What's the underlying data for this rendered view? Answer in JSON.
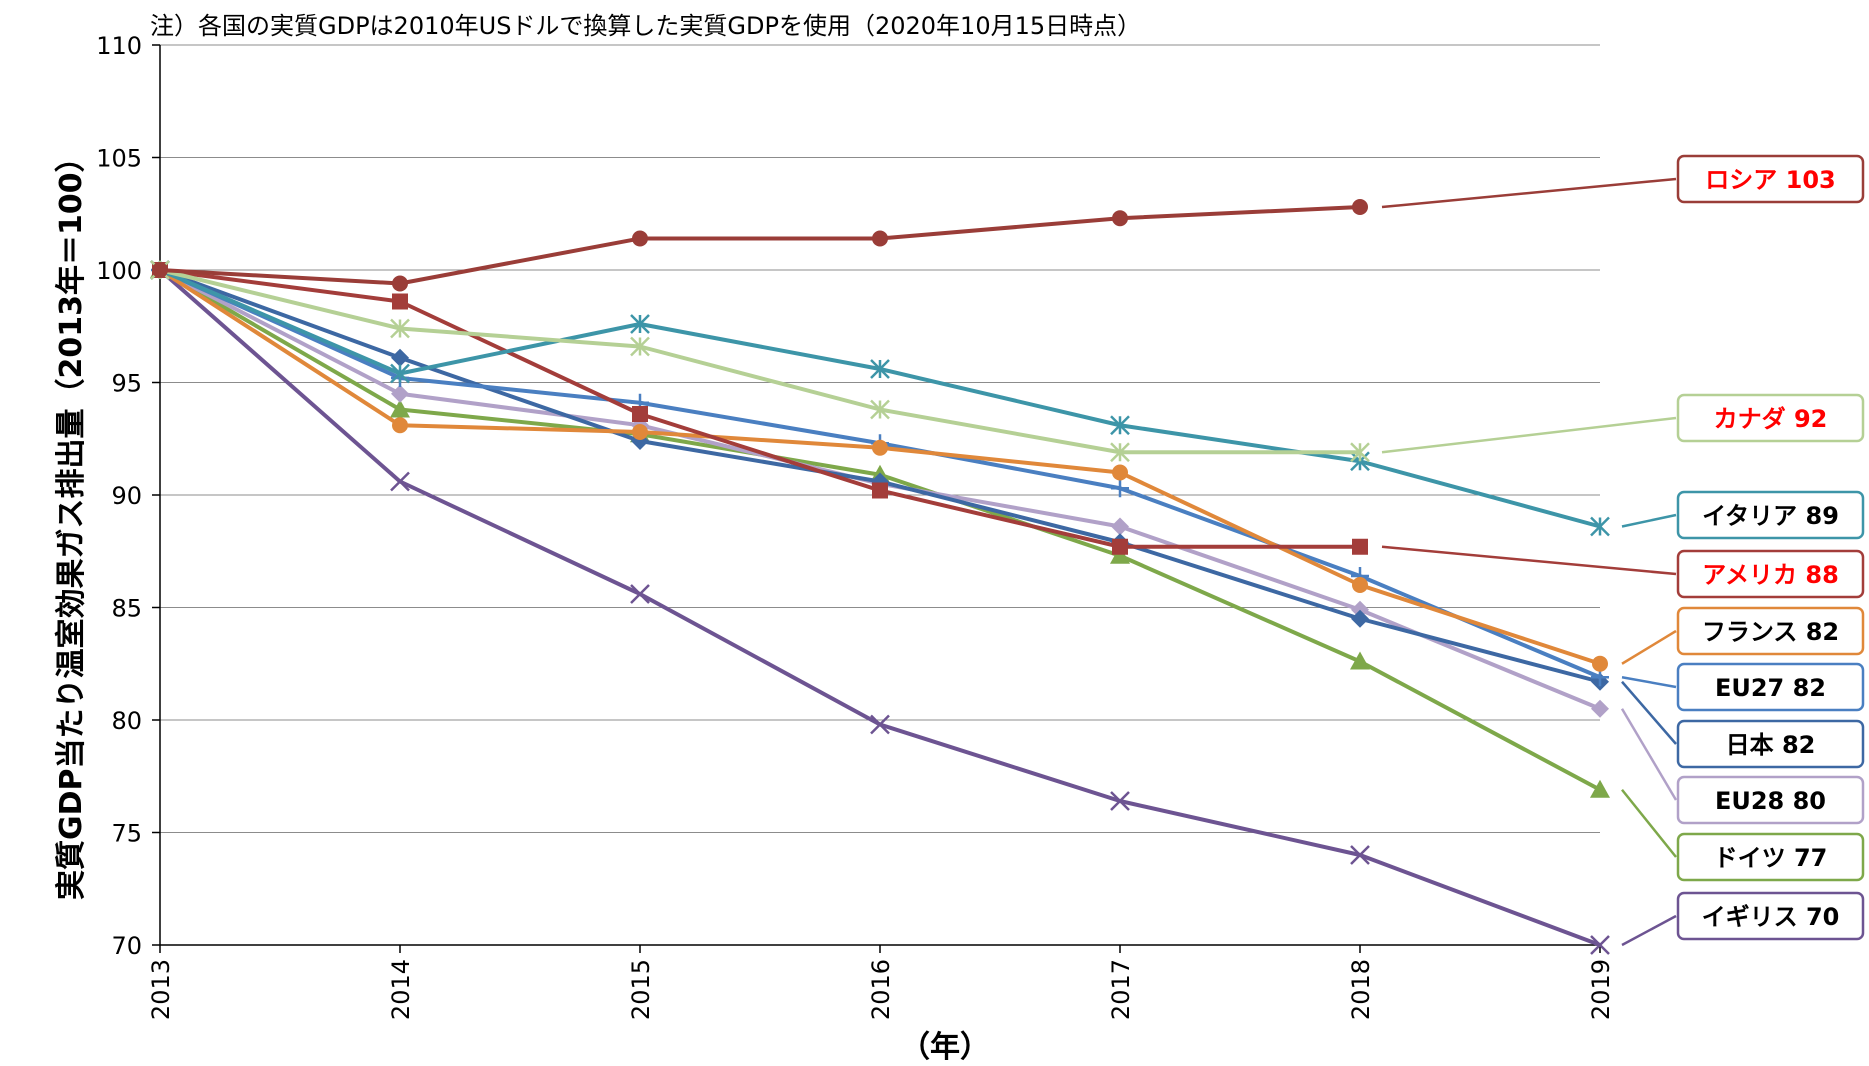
{
  "note": "注）各国の実質GDPは2010年USドルで換算した実質GDPを使用（2020年10月15日時点）",
  "chart_data": {
    "type": "line",
    "ylabel": "実質GDP当たり温室効果ガス排出量（2013年＝100）",
    "xlabel": "（年）",
    "x": [
      "2013",
      "2014",
      "2015",
      "2016",
      "2017",
      "2018",
      "2019"
    ],
    "ylim": [
      70,
      110
    ],
    "yticks": [
      70,
      75,
      80,
      85,
      90,
      95,
      100,
      105,
      110
    ],
    "grid": true,
    "series": [
      {
        "name": "ロシア",
        "label": "ロシア 103",
        "color": "#9a3d38",
        "marker": "circle",
        "label_color": "#ff0000",
        "values": [
          100,
          99.4,
          101.4,
          101.4,
          102.3,
          102.8,
          null
        ]
      },
      {
        "name": "カナダ",
        "label": "カナダ 92",
        "color": "#b5d095",
        "marker": "star",
        "label_color": "#ff0000",
        "values": [
          100,
          97.4,
          96.6,
          93.8,
          91.9,
          91.9,
          null
        ]
      },
      {
        "name": "イタリア",
        "label": "イタリア 89",
        "color": "#3d95a8",
        "marker": "star",
        "label_color": "#000000",
        "values": [
          100,
          95.4,
          97.6,
          95.6,
          93.1,
          91.5,
          88.6
        ]
      },
      {
        "name": "アメリカ",
        "label": "アメリカ 88",
        "color": "#a33d3a",
        "marker": "square",
        "label_color": "#ff0000",
        "values": [
          100,
          98.6,
          93.6,
          90.2,
          87.7,
          87.7,
          null
        ]
      },
      {
        "name": "フランス",
        "label": "フランス 82",
        "color": "#e0883a",
        "marker": "circle",
        "label_color": "#000000",
        "values": [
          100,
          93.1,
          92.8,
          92.1,
          91.0,
          86.0,
          82.5
        ]
      },
      {
        "name": "EU27",
        "label": "EU27 82",
        "color": "#4a7fc1",
        "marker": "plus",
        "label_color": "#000000",
        "values": [
          100,
          95.2,
          94.1,
          92.3,
          90.3,
          86.4,
          81.9
        ]
      },
      {
        "name": "日本",
        "label": "日本 82",
        "color": "#3d68a3",
        "marker": "diamond",
        "label_color": "#000000",
        "values": [
          100,
          96.1,
          92.4,
          90.6,
          87.9,
          84.5,
          81.7
        ]
      },
      {
        "name": "EU28",
        "label": "EU28 80",
        "color": "#b1a1c8",
        "marker": "diamond",
        "label_color": "#000000",
        "values": [
          100,
          94.5,
          93.1,
          90.5,
          88.6,
          84.9,
          80.5
        ]
      },
      {
        "name": "ドイツ",
        "label": "ドイツ 77",
        "color": "#7ea84a",
        "marker": "triangle",
        "label_color": "#000000",
        "values": [
          100,
          93.8,
          92.7,
          90.9,
          87.3,
          82.6,
          76.9
        ]
      },
      {
        "name": "イギリス",
        "label": "イギリス 70",
        "color": "#6d5492",
        "marker": "x",
        "label_color": "#000000",
        "values": [
          100,
          90.6,
          85.6,
          79.8,
          76.4,
          74.0,
          70.0
        ]
      }
    ]
  }
}
